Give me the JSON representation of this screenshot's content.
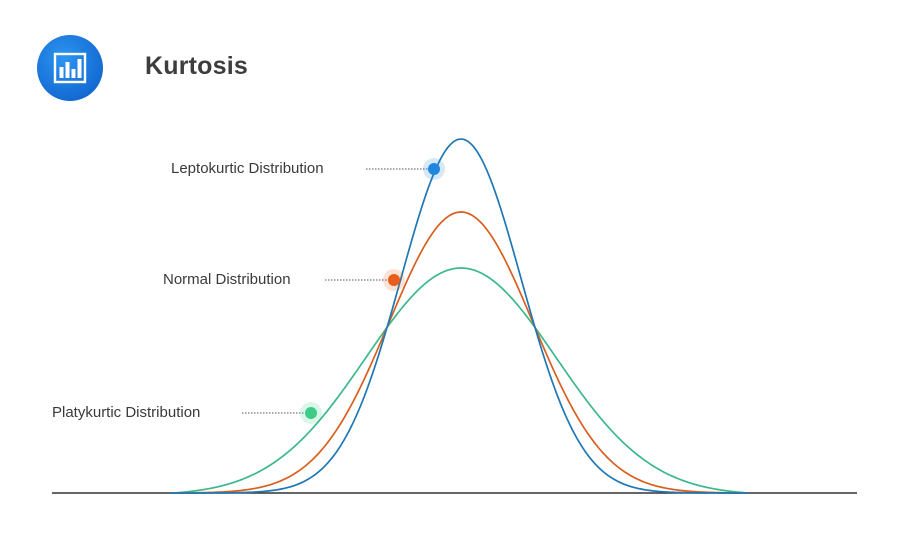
{
  "header": {
    "title": "Kurtosis",
    "logo_icon": "bar-chart-icon"
  },
  "colors": {
    "brand_blue": "#1f87e0",
    "leptokurtic": "#1f77b4",
    "normal": "#d95f1e",
    "platykurtic": "#3cb88a",
    "baseline": "#333333"
  },
  "callouts": {
    "leptokurtic": {
      "label": "Leptokurtic  Distribution",
      "dot_color": "#1f87e0"
    },
    "normal": {
      "label": "Normal  Distribution",
      "dot_color": "#e85d1c"
    },
    "platykurtic": {
      "label": "Platykurtic Distribution",
      "dot_color": "#3ccc86"
    }
  }
}
